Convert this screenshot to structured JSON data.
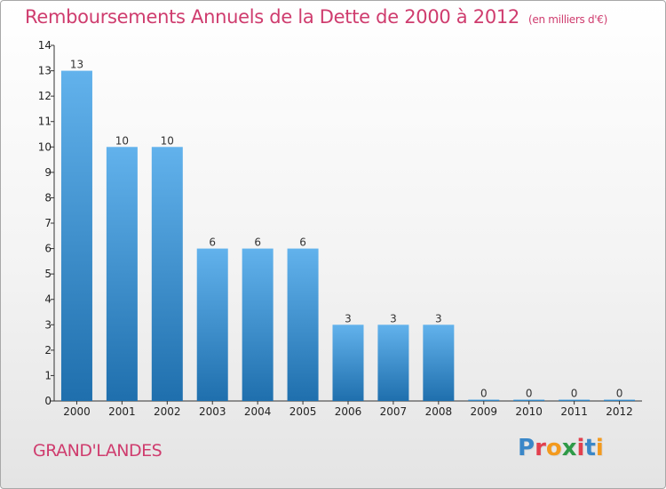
{
  "title": "Remboursements Annuels de la Dette de 2000 à 2012",
  "unit": "(en milliers d'€)",
  "commune": "GRAND'LANDES",
  "logo": {
    "text": "Proxiti",
    "colors": [
      "#3a87c8",
      "#e2404e",
      "#f39a1e",
      "#2e9a47",
      "#e2404e",
      "#3a87c8",
      "#f39a1e"
    ]
  },
  "colors": {
    "bar_light": "#62b2ec",
    "bar_dark": "#1f6fad",
    "text": "#cf3c6e",
    "axis": "#333333"
  },
  "chart_data": {
    "type": "bar",
    "categories": [
      "2000",
      "2001",
      "2002",
      "2003",
      "2004",
      "2005",
      "2006",
      "2007",
      "2008",
      "2009",
      "2010",
      "2011",
      "2012"
    ],
    "values": [
      13,
      10,
      10,
      6,
      6,
      6,
      3,
      3,
      3,
      0,
      0,
      0,
      0
    ],
    "ylim": [
      0,
      14
    ],
    "yticks": [
      0,
      1,
      2,
      3,
      4,
      5,
      6,
      7,
      8,
      9,
      10,
      11,
      12,
      13,
      14
    ],
    "title": "Remboursements Annuels de la Dette de 2000 à 2012",
    "xlabel": "",
    "ylabel": "",
    "grid": false,
    "data_labels": true
  }
}
